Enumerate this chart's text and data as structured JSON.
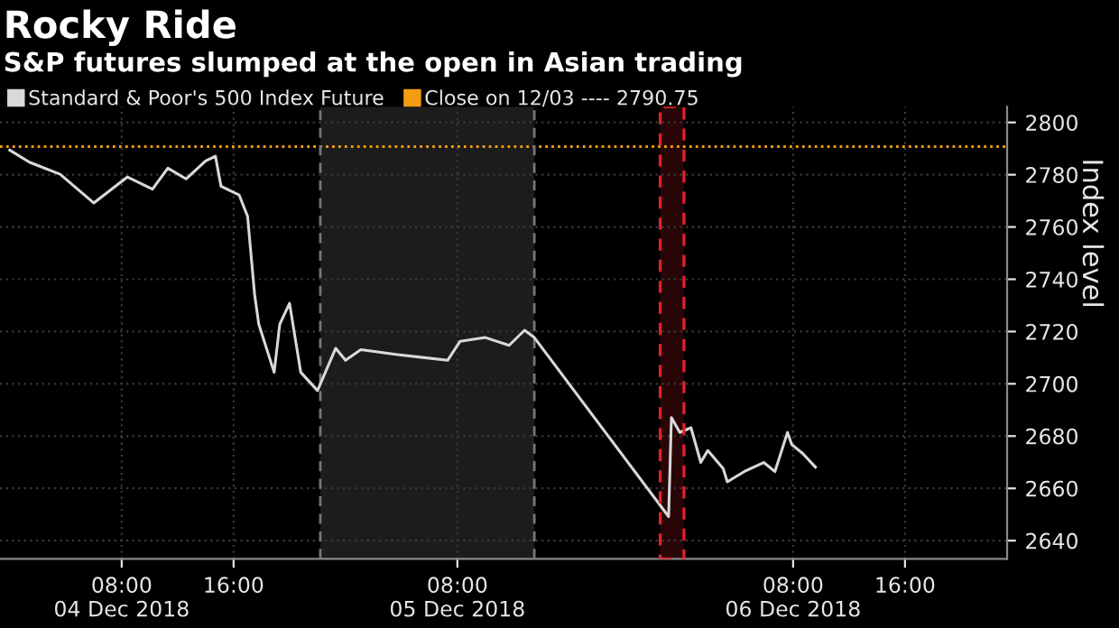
{
  "chart_data": {
    "type": "line",
    "title": "Rocky Ride",
    "subtitle": "S&P futures slumped at the open in Asian trading",
    "ylabel": "Index level",
    "x": [
      "2018-12-04T00:00",
      "2018-12-04T01:24",
      "2018-12-04T03:36",
      "2018-12-04T06:00",
      "2018-12-04T08:24",
      "2018-12-04T10:12",
      "2018-12-04T11:18",
      "2018-12-04T12:36",
      "2018-12-04T14:00",
      "2018-12-04T14:42",
      "2018-12-04T15:06",
      "2018-12-04T16:24",
      "2018-12-04T17:00",
      "2018-12-04T17:30",
      "2018-12-04T17:48",
      "2018-12-04T18:54",
      "2018-12-04T19:18",
      "2018-12-04T20:00",
      "2018-12-04T20:48",
      "2018-12-04T22:00",
      "2018-12-04T23:18",
      "2018-12-05T00:00",
      "2018-12-05T01:06",
      "2018-12-05T03:42",
      "2018-12-05T05:30",
      "2018-12-05T07:18",
      "2018-12-05T08:12",
      "2018-12-05T10:00",
      "2018-12-05T11:42",
      "2018-12-05T12:48",
      "2018-12-05T13:30",
      "2018-12-05T23:06",
      "2018-12-05T23:18",
      "2018-12-05T23:54",
      "2018-12-06T00:42",
      "2018-12-06T01:24",
      "2018-12-06T01:54",
      "2018-12-06T03:00",
      "2018-12-06T03:18",
      "2018-12-06T04:30",
      "2018-12-06T05:54",
      "2018-12-06T06:42",
      "2018-12-06T07:36",
      "2018-12-06T07:54",
      "2018-12-06T08:42",
      "2018-12-06T09:36"
    ],
    "series": [
      {
        "name": "Standard & Poor's 500 Index Future",
        "color": "#d9d9d9",
        "values": [
          2789.4,
          2784.8,
          2780.2,
          2769.2,
          2779.1,
          2774.5,
          2782.5,
          2778.4,
          2785.3,
          2787.1,
          2775.6,
          2772.2,
          2764.1,
          2734.3,
          2722.8,
          2704.4,
          2722.8,
          2730.8,
          2704.4,
          2697.4,
          2713.6,
          2709.0,
          2713.1,
          2711.2,
          2710.1,
          2709.0,
          2716.3,
          2717.7,
          2714.7,
          2720.5,
          2717.7,
          2649.2,
          2687.1,
          2681.4,
          2683.2,
          2669.9,
          2674.5,
          2667.6,
          2662.5,
          2666.4,
          2669.9,
          2666.4,
          2681.4,
          2676.8,
          2673.3,
          2668.1
        ]
      }
    ],
    "xlim": [
      "2018-12-03T23:18",
      "2018-12-06T23:18"
    ],
    "ylim": [
      2633,
      2806
    ],
    "xticks": [
      {
        "value": "2018-12-04T08:00",
        "label": "08:00\n04 Dec 2018"
      },
      {
        "value": "2018-12-04T16:00",
        "label": "16:00"
      },
      {
        "value": "2018-12-05T08:00",
        "label": "08:00\n05 Dec 2018"
      },
      {
        "value": "2018-12-06T08:00",
        "label": "08:00\n06 Dec 2018"
      },
      {
        "value": "2018-12-06T16:00",
        "label": "16:00"
      }
    ],
    "yticks": [
      2640,
      2660,
      2680,
      2700,
      2720,
      2740,
      2760,
      2780,
      2800
    ],
    "ref_lines": [
      {
        "axis": "y",
        "value": 2790.75,
        "label": "Close on 12/03 ---- 2790.75",
        "color": "#f39c12",
        "line_style": "dotted"
      },
      {
        "axis": "x",
        "value": "2018-12-04T22:12",
        "color": "#777777",
        "line_style": "dashed"
      },
      {
        "axis": "x",
        "value": "2018-12-05T13:30",
        "color": "#777777",
        "line_style": "dashed"
      }
    ],
    "bands": [
      {
        "axis": "x",
        "from": "2018-12-04T22:12",
        "to": "2018-12-05T13:30",
        "color": "#1c1c1c"
      },
      {
        "axis": "x",
        "from": "2018-12-05T22:30",
        "to": "2018-12-06T00:12",
        "color": "#e0202a"
      }
    ],
    "grid": true,
    "legend": "top left",
    "marker": "none",
    "line_style": "solid"
  }
}
